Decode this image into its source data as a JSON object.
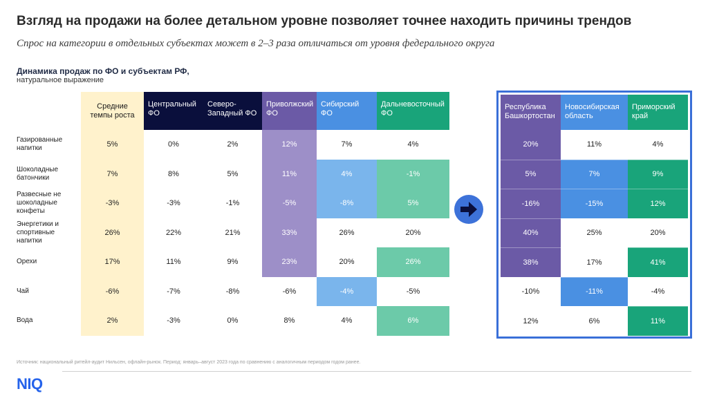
{
  "title": "Взгляд на продажи на более детальном уровне позволяет точнее находить причины трендов",
  "subtitle": "Спрос на категории в отдельных субъектах может в 2–3 раза отличаться от уровня федерального округа",
  "section": {
    "title": "Динамика продаж по ФО и субъектам РФ,",
    "subtitle": "натуральное выражение"
  },
  "left_table": {
    "columns": [
      {
        "label": "Средние темпы роста",
        "bg": "#fff2cc",
        "text_dark": true,
        "center": true
      },
      {
        "label": "Центральный ФО",
        "bg": "#0a0f3c",
        "text_dark": false
      },
      {
        "label": "Северо-Западный ФО",
        "bg": "#0a0f3c",
        "text_dark": false
      },
      {
        "label": "Приволжский ФО",
        "bg": "#6b5aa6",
        "text_dark": false
      },
      {
        "label": "Сибирский ФО",
        "bg": "#4a90e2",
        "text_dark": false
      },
      {
        "label": "Дальневосточный ФО",
        "bg": "#19a47a",
        "text_dark": false
      }
    ],
    "rows": [
      {
        "label": "Газированные напитки",
        "values": [
          "5%",
          "0%",
          "2%",
          "12%",
          "7%",
          "4%"
        ]
      },
      {
        "label": "Шоколадные батончики",
        "values": [
          "7%",
          "8%",
          "5%",
          "11%",
          "4%",
          "-1%"
        ]
      },
      {
        "label": "Развесные не шоколадные конфеты",
        "values": [
          "-3%",
          "-3%",
          "-1%",
          "-5%",
          "-8%",
          "5%"
        ]
      },
      {
        "label": "Энергетики и спортивные напитки",
        "values": [
          "26%",
          "22%",
          "21%",
          "33%",
          "26%",
          "20%"
        ]
      },
      {
        "label": "Орехи",
        "values": [
          "17%",
          "11%",
          "9%",
          "23%",
          "20%",
          "26%"
        ]
      },
      {
        "label": "Чай",
        "values": [
          "-6%",
          "-7%",
          "-8%",
          "-6%",
          "-4%",
          "-5%"
        ]
      },
      {
        "label": "Вода",
        "values": [
          "2%",
          "-3%",
          "0%",
          "8%",
          "4%",
          "6%"
        ]
      }
    ],
    "highlight": [
      [
        1,
        0,
        0,
        1,
        0,
        0
      ],
      [
        1,
        0,
        0,
        1,
        1,
        1
      ],
      [
        1,
        0,
        0,
        1,
        1,
        1
      ],
      [
        1,
        0,
        0,
        1,
        0,
        0
      ],
      [
        1,
        0,
        0,
        1,
        0,
        1
      ],
      [
        1,
        0,
        0,
        0,
        1,
        0
      ],
      [
        1,
        0,
        0,
        0,
        0,
        1
      ]
    ],
    "highlight_colors": [
      "#fff2cc",
      "#ffffff",
      "#ffffff",
      "#9d8fc8",
      "#7ab5ec",
      "#6ccaa9"
    ]
  },
  "right_table": {
    "columns": [
      {
        "label": "Республика Башкортостан",
        "bg": "#6b5aa6"
      },
      {
        "label": "Новосибирская область",
        "bg": "#4a90e2"
      },
      {
        "label": "Приморский край",
        "bg": "#19a47a"
      }
    ],
    "rows": [
      {
        "values": [
          "20%",
          "11%",
          "4%"
        ]
      },
      {
        "values": [
          "5%",
          "7%",
          "9%"
        ]
      },
      {
        "values": [
          "-16%",
          "-15%",
          "12%"
        ]
      },
      {
        "values": [
          "40%",
          "25%",
          "20%"
        ]
      },
      {
        "values": [
          "38%",
          "17%",
          "41%"
        ]
      },
      {
        "values": [
          "-10%",
          "-11%",
          "-4%"
        ]
      },
      {
        "values": [
          "12%",
          "6%",
          "11%"
        ]
      }
    ],
    "highlight": [
      [
        1,
        0,
        0
      ],
      [
        1,
        1,
        1
      ],
      [
        1,
        1,
        1
      ],
      [
        1,
        0,
        0
      ],
      [
        1,
        0,
        1
      ],
      [
        0,
        1,
        0
      ],
      [
        0,
        0,
        1
      ]
    ],
    "highlight_colors": [
      "#6b5aa6",
      "#4a90e2",
      "#19a47a"
    ]
  },
  "arrow_icon": "right-arrow-icon",
  "source": "Источник: национальный ритейл-аудит Нильсен, офлайн-рынок. Период: январь–август 2023 года по сравнению с аналогичным периодом годом ранее.",
  "logo": "NIQ",
  "colors": {
    "accent_blue": "#3a6fd8",
    "navy": "#0a0f3c",
    "purple": "#6b5aa6",
    "blue": "#4a90e2",
    "green": "#19a47a",
    "yellow": "#fff2cc"
  }
}
